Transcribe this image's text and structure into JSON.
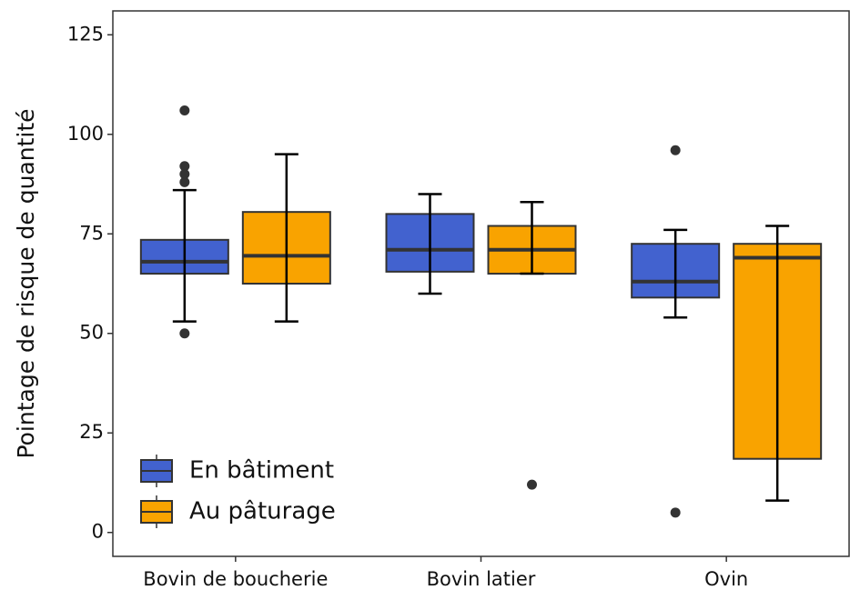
{
  "chart_data": {
    "type": "box",
    "y_label": "Pointage de risque de quantité",
    "categories": [
      "Bovin de boucherie",
      "Bovin latier",
      "Ovin"
    ],
    "ylim": [
      -6,
      131
    ],
    "yticks": [
      0,
      25,
      50,
      75,
      100,
      125
    ],
    "legend": "bottom-left",
    "series": [
      {
        "name": "En bâtiment",
        "color": "#4262cf",
        "boxes": [
          {
            "low": 53,
            "q1": 65,
            "median": 68,
            "q3": 73.5,
            "high": 86,
            "outliers": [
              106,
              92,
              90,
              88,
              50
            ]
          },
          {
            "low": 60,
            "q1": 65.5,
            "median": 71,
            "q3": 80,
            "high": 85,
            "outliers": []
          },
          {
            "low": 54,
            "q1": 59,
            "median": 63,
            "q3": 72.5,
            "high": 76,
            "outliers": [
              96,
              5
            ]
          }
        ]
      },
      {
        "name": "Au pâturage",
        "color": "#f9a300",
        "boxes": [
          {
            "low": 53,
            "q1": 62.5,
            "median": 69.5,
            "q3": 80.5,
            "high": 95,
            "outliers": []
          },
          {
            "low": 65,
            "q1": 65,
            "median": 71,
            "q3": 77,
            "high": 83,
            "outliers": [
              12
            ]
          },
          {
            "low": 8,
            "q1": 18.5,
            "median": 69,
            "q3": 72.5,
            "high": 77,
            "outliers": []
          }
        ]
      }
    ]
  }
}
